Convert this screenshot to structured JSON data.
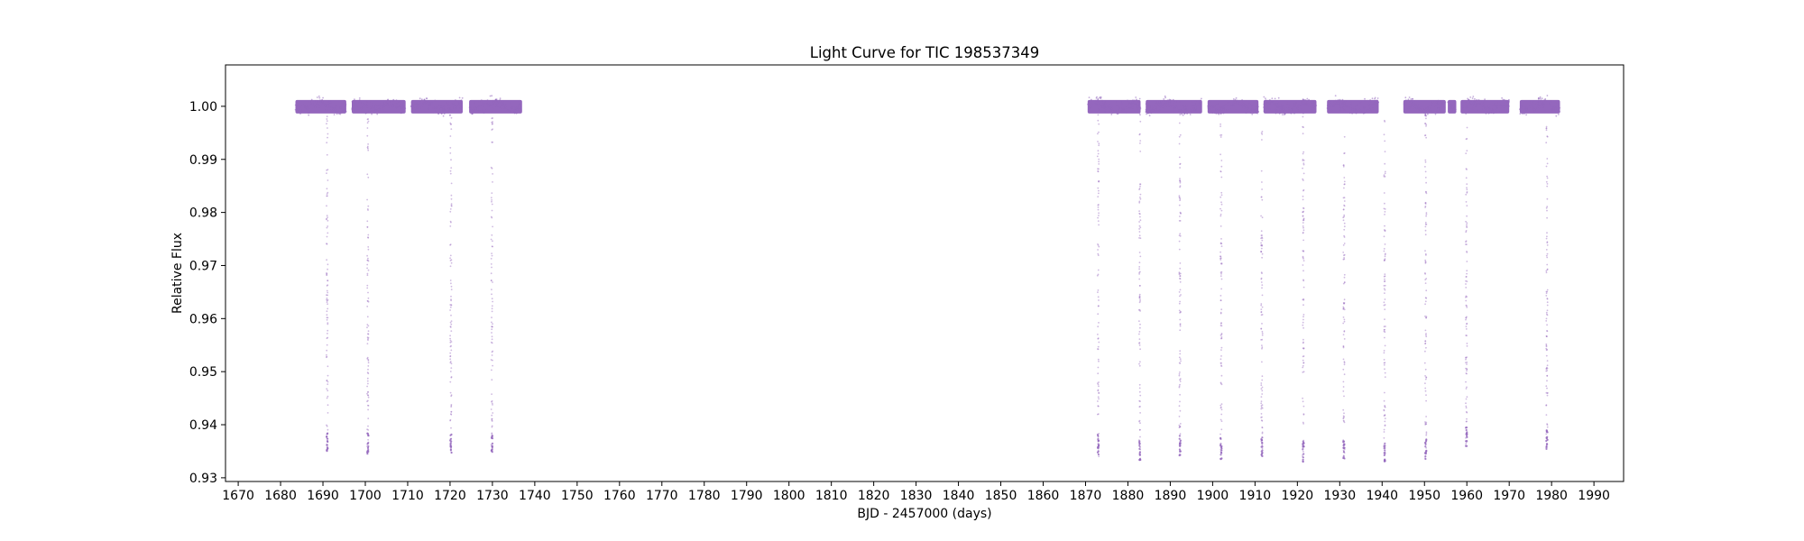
{
  "chart_data": {
    "type": "scatter",
    "title": "Light Curve for TIC 198537349",
    "xlabel": "BJD - 2457000 (days)",
    "ylabel": "Relative Flux",
    "xlim": [
      1667,
      1997
    ],
    "ylim": [
      0.9293,
      1.0078
    ],
    "xticks": [
      1670,
      1680,
      1690,
      1700,
      1710,
      1720,
      1730,
      1740,
      1750,
      1760,
      1770,
      1780,
      1790,
      1800,
      1810,
      1820,
      1830,
      1840,
      1850,
      1860,
      1870,
      1880,
      1890,
      1900,
      1910,
      1920,
      1930,
      1940,
      1950,
      1960,
      1970,
      1980,
      1990
    ],
    "yticks": [
      0.93,
      0.94,
      0.95,
      0.96,
      0.97,
      0.98,
      0.99,
      1.0
    ],
    "ytick_labels": [
      "0.93",
      "0.94",
      "0.95",
      "0.96",
      "0.97",
      "0.98",
      "0.99",
      "1.00"
    ],
    "grid": false,
    "legend": "none",
    "marker_color": "#9467bd",
    "series": [
      {
        "baseline": 1.0,
        "segments": [
          [
            1683.5,
            1695.5
          ],
          [
            1696.8,
            1709.5
          ],
          [
            1710.8,
            1723.0
          ],
          [
            1724.5,
            1737.0
          ],
          [
            1870.5,
            1883.0
          ],
          [
            1884.2,
            1897.5
          ],
          [
            1898.8,
            1910.8
          ],
          [
            1912.0,
            1924.5
          ],
          [
            1927.0,
            1939.2
          ],
          [
            1945.0,
            1955.0
          ],
          [
            1955.5,
            1957.5
          ],
          [
            1958.5,
            1970.0
          ],
          [
            1972.5,
            1982.0
          ]
        ],
        "transits": [
          {
            "x": 1691.0,
            "depth": 0.9345
          },
          {
            "x": 1700.6,
            "depth": 0.9345
          },
          {
            "x": 1720.2,
            "depth": 0.9345
          },
          {
            "x": 1729.9,
            "depth": 0.934
          },
          {
            "x": 1873.0,
            "depth": 0.934
          },
          {
            "x": 1882.8,
            "depth": 0.933
          },
          {
            "x": 1892.3,
            "depth": 0.934
          },
          {
            "x": 1902.0,
            "depth": 0.9335
          },
          {
            "x": 1911.6,
            "depth": 0.934
          },
          {
            "x": 1921.4,
            "depth": 0.933
          },
          {
            "x": 1931.0,
            "depth": 0.9335
          },
          {
            "x": 1940.6,
            "depth": 0.933
          },
          {
            "x": 1950.3,
            "depth": 0.9335
          },
          {
            "x": 1959.9,
            "depth": 0.9355
          },
          {
            "x": 1978.9,
            "depth": 0.935
          }
        ]
      }
    ]
  }
}
